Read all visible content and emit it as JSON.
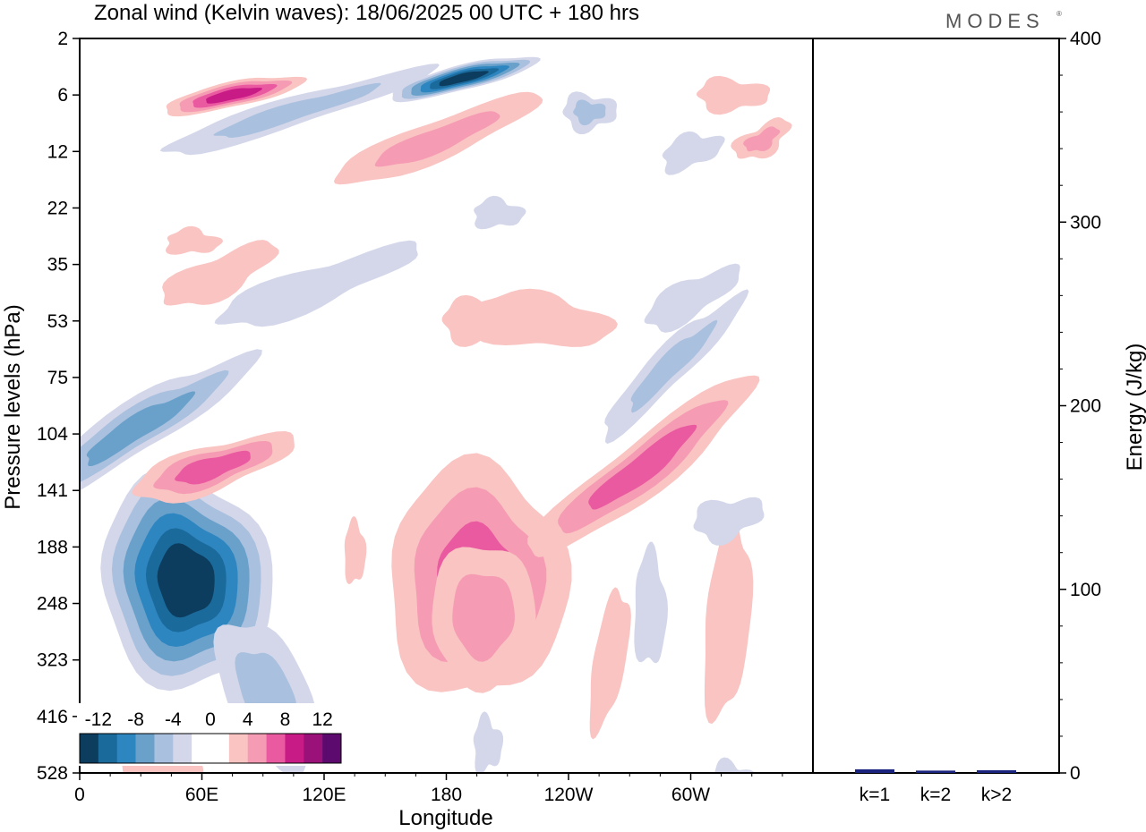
{
  "title": "Zonal wind (Kelvin waves):  18/06/2025  00 UTC  + 180 hrs",
  "logo": "MODES",
  "chart_data": [
    {
      "type": "heatmap",
      "xlabel": "Longitude",
      "ylabel": "Pressure levels (hPa)",
      "x_ticks": [
        "0",
        "60E",
        "120E",
        "180",
        "120W",
        "60W"
      ],
      "x_tick_values": [
        0,
        60,
        120,
        180,
        240,
        300
      ],
      "xlim": [
        0,
        360
      ],
      "y_ticks": [
        "2",
        "6",
        "12",
        "22",
        "35",
        "53",
        "75",
        "104",
        "141",
        "188",
        "248",
        "323",
        "416",
        "528"
      ],
      "y_scale": "log",
      "colorbar": {
        "labels": [
          "-12",
          "-8",
          "-4",
          "0",
          "4",
          "8",
          "12"
        ],
        "colors": [
          "#0c3c5e",
          "#1b6a9c",
          "#2e86c1",
          "#6aa1cb",
          "#a9c0de",
          "#d4d7ea",
          "#ffffff",
          "#ffffff",
          "#f9c4c1",
          "#f69bb4",
          "#ea5aa0",
          "#c91b86",
          "#9b117a",
          "#5d0a6e"
        ]
      },
      "features": [
        {
          "kind": "negative",
          "center": [
            52,
            170
          ],
          "level": "-12"
        },
        {
          "kind": "negative",
          "center": [
            210,
            3
          ],
          "level": "-12"
        },
        {
          "kind": "positive",
          "center": [
            72,
            3.5
          ],
          "level": "10"
        },
        {
          "kind": "positive",
          "center": [
            195,
            160
          ],
          "level": "8"
        },
        {
          "kind": "positive",
          "center": [
            278,
            125
          ],
          "level": "8"
        },
        {
          "kind": "positive",
          "center": [
            65,
            95
          ],
          "level": "8"
        }
      ]
    },
    {
      "type": "bar",
      "categories": [
        "k=1",
        "k=2",
        "k>2"
      ],
      "values": [
        1.5,
        0.8,
        1.0
      ],
      "ylabel": "Energy (J/kg)",
      "ylim": [
        0,
        400
      ],
      "y_ticks": [
        "0",
        "100",
        "200",
        "300",
        "400"
      ],
      "bar_color": "#1a237e"
    }
  ]
}
